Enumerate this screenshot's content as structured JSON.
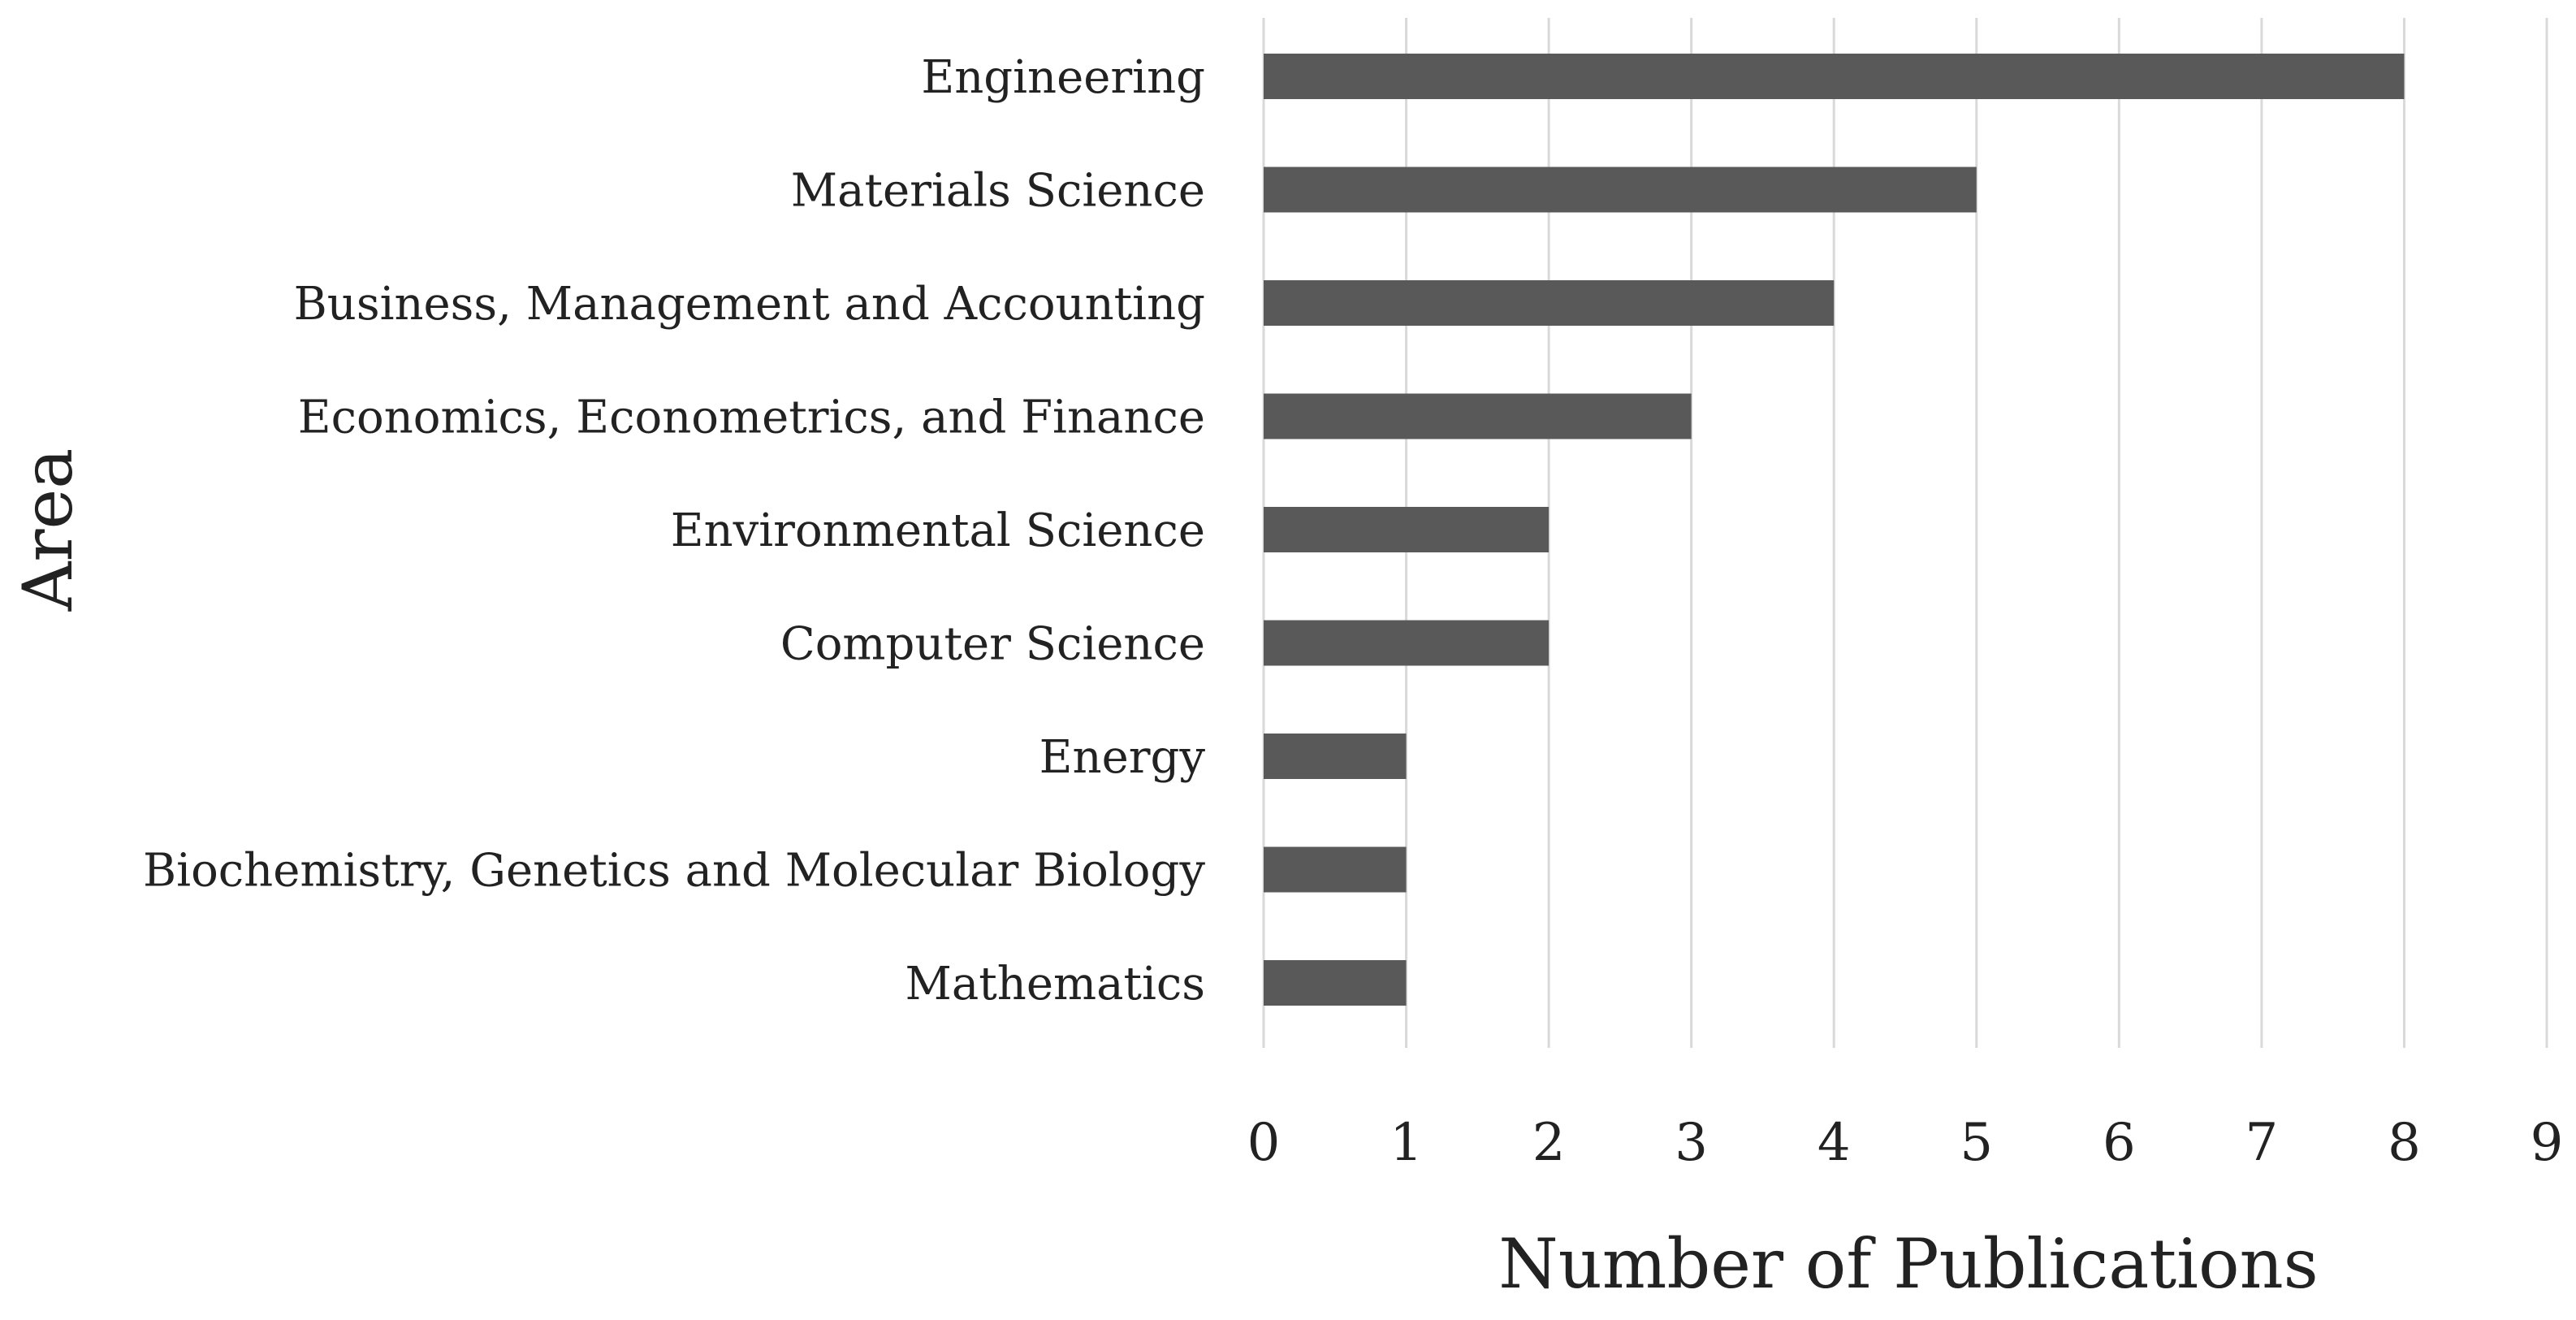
{
  "chart_data": {
    "type": "bar",
    "orientation": "horizontal",
    "categories": [
      "Engineering",
      "Materials Science",
      "Business, Management and Accounting",
      "Economics, Econometrics, and Finance",
      "Environmental Science",
      "Computer Science",
      "Energy",
      "Biochemistry, Genetics and Molecular Biology",
      "Mathematics"
    ],
    "values": [
      8,
      5,
      4,
      3,
      2,
      2,
      1,
      1,
      1
    ],
    "xlabel": "Number of Publications",
    "ylabel": "Area",
    "xlim": [
      0,
      9
    ],
    "xticks": [
      "0",
      "1",
      "2",
      "3",
      "4",
      "5",
      "6",
      "7",
      "8",
      "9"
    ],
    "grid": "vertical",
    "legend": "none",
    "bar_color": "#595959",
    "grid_color": "#d9d9d9"
  }
}
